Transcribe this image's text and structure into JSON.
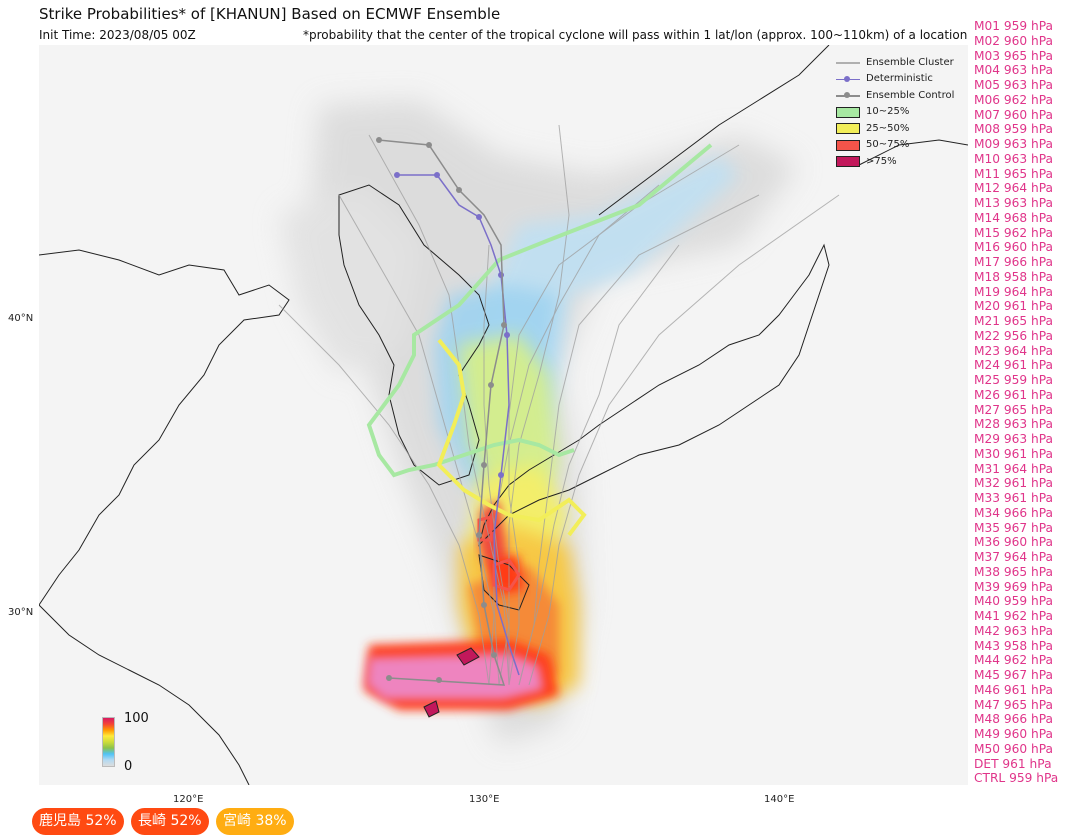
{
  "header": {
    "title": "Strike Probabilities* of [KHANUN] Based on ECMWF Ensemble",
    "init_time": "Init Time: 2023/08/05 00Z",
    "note": "*probability that the center of the tropical cyclone will pass within 1 lat/lon (approx. 100~110km) of a location"
  },
  "legend": {
    "ensemble_cluster": "Ensemble Cluster",
    "deterministic": "Deterministic",
    "ensemble_control": "Ensemble Control",
    "p10_25": "10~25%",
    "p25_50": "25~50%",
    "p50_75": "50~75%",
    "p75": ">75%"
  },
  "axes": {
    "lat_40": "40°N",
    "lat_30": "30°N",
    "lon_120": "120°E",
    "lon_130": "130°E",
    "lon_140": "140°E"
  },
  "colorbar": {
    "max": "100",
    "min": "0"
  },
  "members": [
    "M01 959 hPa",
    "M02 960 hPa",
    "M03 965 hPa",
    "M04 963 hPa",
    "M05 963 hPa",
    "M06 962 hPa",
    "M07 960 hPa",
    "M08 959 hPa",
    "M09 963 hPa",
    "M10 963 hPa",
    "M11 965 hPa",
    "M12 964 hPa",
    "M13 963 hPa",
    "M14 968 hPa",
    "M15 962 hPa",
    "M16 960 hPa",
    "M17 966 hPa",
    "M18 958 hPa",
    "M19 964 hPa",
    "M20 961 hPa",
    "M21 965 hPa",
    "M22 956 hPa",
    "M23 964 hPa",
    "M24 961 hPa",
    "M25 959 hPa",
    "M26 961 hPa",
    "M27 965 hPa",
    "M28 963 hPa",
    "M29 963 hPa",
    "M30 961 hPa",
    "M31 964 hPa",
    "M32 961 hPa",
    "M33 961 hPa",
    "M34 966 hPa",
    "M35 967 hPa",
    "M36 960 hPa",
    "M37 964 hPa",
    "M38 965 hPa",
    "M39 969 hPa",
    "M40 959 hPa",
    "M41 962 hPa",
    "M42 963 hPa",
    "M43 958 hPa",
    "M44 962 hPa",
    "M45 967 hPa",
    "M46 961 hPa",
    "M47 965 hPa",
    "M48 966 hPa",
    "M49 960 hPa",
    "M50 960 hPa",
    "DET 961 hPa",
    "CTRL 959 hPa"
  ],
  "locations": [
    {
      "name": "鹿児島",
      "prob": "52%",
      "color": "#ff4a12"
    },
    {
      "name": "長崎",
      "prob": "52%",
      "color": "#ff4a12"
    },
    {
      "name": "宮崎",
      "prob": "38%",
      "color": "#ffad12"
    }
  ],
  "colors": {
    "member_text": "#e0358a",
    "cluster_line": "#9e9e9e",
    "deterministic": "#7b6fc9",
    "control": "#8c8c8c",
    "band_10_25": "#a7e8a2",
    "band_25_50": "#f2ee59",
    "band_50_75": "#f4544a",
    "band_75": "#c2185b"
  }
}
